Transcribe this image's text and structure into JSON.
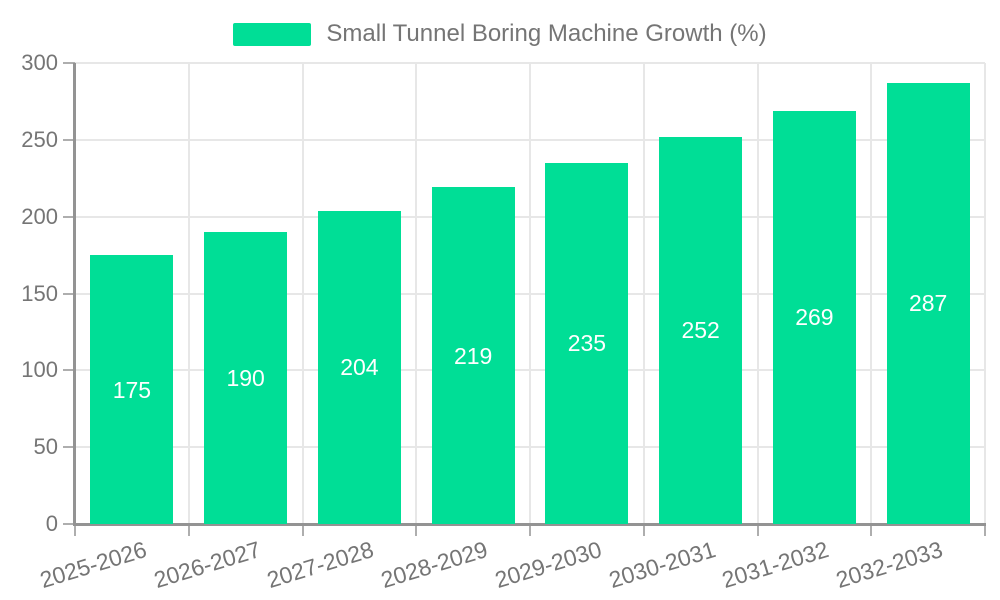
{
  "chart_data": {
    "type": "bar",
    "title": "",
    "legend": "Small Tunnel Boring Machine Growth (%)",
    "legend_position": "top",
    "categories": [
      "2025-2026",
      "2026-2027",
      "2027-2028",
      "2028-2029",
      "2029-2030",
      "2030-2031",
      "2031-2032",
      "2032-2033"
    ],
    "values": [
      175,
      190,
      204,
      219,
      235,
      252,
      269,
      287
    ],
    "xlabel": "",
    "ylabel": "",
    "ylim": [
      0,
      300
    ],
    "yticks": [
      0,
      50,
      100,
      150,
      200,
      250,
      300
    ],
    "grid": "on",
    "bar_color": "#00de96",
    "grid_color": "#e7e7e7",
    "axis_color": "#939393",
    "tick_color": "#aeaeae",
    "text_color": "#757575",
    "value_label_color": "#ffffff"
  }
}
